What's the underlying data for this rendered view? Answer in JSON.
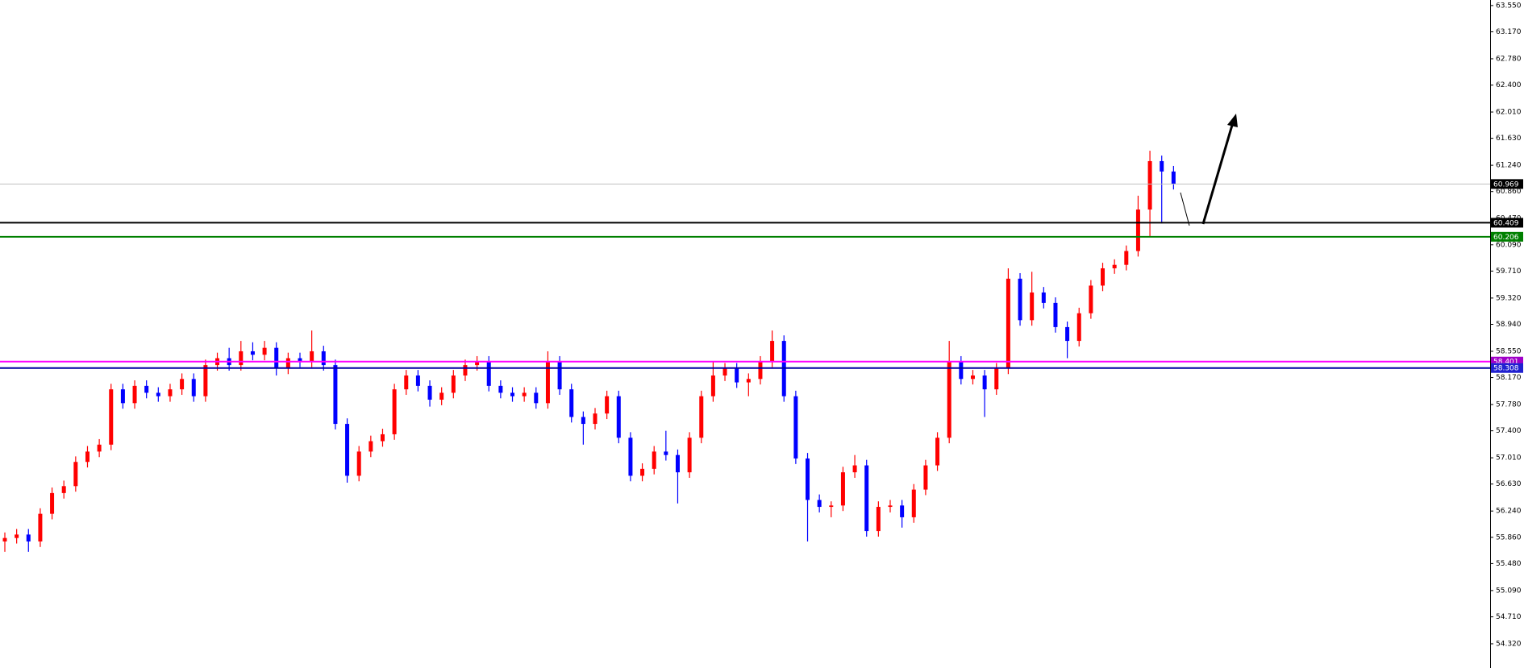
{
  "chart_data": {
    "type": "candlestick",
    "up_color": "#ff0000",
    "down_color": "#0000ff",
    "ylim": [
      53.97,
      63.63
    ],
    "yticks": [
      {
        "value": 63.55,
        "label": "63.550"
      },
      {
        "value": 63.17,
        "label": "63.170"
      },
      {
        "value": 62.78,
        "label": "62.780"
      },
      {
        "value": 62.4,
        "label": "62.400"
      },
      {
        "value": 62.01,
        "label": "62.010"
      },
      {
        "value": 61.63,
        "label": "61.630"
      },
      {
        "value": 61.24,
        "label": "61.240"
      },
      {
        "value": 60.86,
        "label": "60.860"
      },
      {
        "value": 60.47,
        "label": "60.470"
      },
      {
        "value": 60.09,
        "label": "60.090"
      },
      {
        "value": 59.71,
        "label": "59.710"
      },
      {
        "value": 59.32,
        "label": "59.320"
      },
      {
        "value": 58.94,
        "label": "58.940"
      },
      {
        "value": 58.55,
        "label": "58.550"
      },
      {
        "value": 58.17,
        "label": "58.170"
      },
      {
        "value": 57.78,
        "label": "57.780"
      },
      {
        "value": 57.4,
        "label": "57.400"
      },
      {
        "value": 57.01,
        "label": "57.010"
      },
      {
        "value": 56.63,
        "label": "56.630"
      },
      {
        "value": 56.24,
        "label": "56.240"
      },
      {
        "value": 55.86,
        "label": "55.860"
      },
      {
        "value": 55.48,
        "label": "55.480"
      },
      {
        "value": 55.09,
        "label": "55.090"
      },
      {
        "value": 54.71,
        "label": "54.710"
      },
      {
        "value": 54.32,
        "label": "54.320"
      }
    ],
    "levels": [
      {
        "value": 60.969,
        "color": "#c0c0c0",
        "label_color": "#000000"
      },
      {
        "value": 60.409,
        "color": "#000000",
        "label_color": "#000000"
      },
      {
        "value": 60.206,
        "color": "#008000",
        "label_color": "#008000"
      },
      {
        "value": 58.401,
        "color": "#ff00ff",
        "label_color": "#a000c8"
      },
      {
        "value": 58.308,
        "color": "#0000a0",
        "label_color": "#2020d0"
      }
    ],
    "open": [
      55.8,
      55.85,
      55.9,
      55.8,
      56.2,
      56.5,
      56.6,
      56.95,
      57.1,
      57.2,
      58.0,
      57.8,
      58.05,
      57.95,
      57.9,
      58.0,
      58.15,
      57.9,
      58.35,
      58.45,
      58.35,
      58.55,
      58.5,
      58.6,
      58.3,
      58.45,
      58.4,
      58.55,
      58.35,
      57.5,
      56.75,
      57.1,
      57.25,
      57.35,
      58.0,
      58.2,
      58.05,
      57.85,
      57.95,
      58.2,
      58.35,
      58.4,
      58.05,
      57.95,
      57.9,
      57.95,
      57.8,
      58.4,
      58.0,
      57.6,
      57.5,
      57.65,
      57.9,
      57.3,
      56.75,
      56.85,
      57.1,
      57.05,
      56.8,
      57.3,
      57.9,
      58.2,
      58.3,
      58.1,
      58.15,
      58.4,
      58.7,
      57.9,
      57.0,
      56.4,
      56.3,
      56.32,
      56.8,
      56.9,
      55.95,
      56.3,
      56.32,
      56.15,
      56.55,
      56.9,
      57.3,
      58.4,
      58.15,
      58.2,
      58.0,
      58.3,
      59.6,
      59.0,
      59.4,
      59.25,
      58.9,
      58.7,
      59.1,
      59.5,
      59.75,
      59.8,
      60.0,
      60.6,
      61.3,
      61.15
    ],
    "high": [
      55.93,
      55.98,
      55.98,
      56.28,
      56.58,
      56.68,
      57.03,
      57.18,
      57.28,
      58.08,
      58.08,
      58.13,
      58.13,
      58.03,
      58.08,
      58.23,
      58.23,
      58.43,
      58.53,
      58.6,
      58.7,
      58.68,
      58.7,
      58.68,
      58.53,
      58.53,
      58.85,
      58.63,
      58.43,
      57.58,
      57.18,
      57.33,
      57.43,
      58.08,
      58.28,
      58.28,
      58.13,
      58.03,
      58.28,
      58.43,
      58.48,
      58.48,
      58.13,
      58.03,
      58.03,
      58.03,
      58.55,
      58.48,
      58.08,
      57.68,
      57.73,
      57.98,
      57.98,
      57.38,
      56.93,
      57.18,
      57.4,
      57.13,
      57.38,
      57.98,
      58.4,
      58.38,
      58.38,
      58.23,
      58.48,
      58.85,
      58.78,
      57.98,
      57.08,
      56.48,
      56.38,
      56.88,
      57.05,
      56.98,
      56.38,
      56.4,
      56.4,
      56.63,
      56.98,
      57.38,
      58.7,
      58.48,
      58.28,
      58.28,
      58.38,
      59.75,
      59.68,
      59.7,
      59.48,
      59.33,
      58.98,
      59.18,
      59.58,
      59.83,
      59.88,
      60.08,
      60.8,
      61.45,
      61.38,
      61.23
    ],
    "low": [
      55.65,
      55.77,
      55.65,
      55.72,
      56.12,
      56.42,
      56.52,
      56.87,
      57.02,
      57.12,
      57.72,
      57.72,
      57.87,
      57.82,
      57.82,
      57.92,
      57.82,
      57.82,
      58.27,
      58.27,
      58.27,
      58.42,
      58.42,
      58.2,
      58.22,
      58.32,
      58.32,
      58.27,
      57.42,
      56.65,
      56.67,
      57.02,
      57.17,
      57.27,
      57.92,
      57.97,
      57.75,
      57.77,
      57.87,
      58.12,
      58.27,
      57.97,
      57.87,
      57.82,
      57.82,
      57.72,
      57.72,
      57.92,
      57.52,
      57.2,
      57.42,
      57.57,
      57.22,
      56.67,
      56.67,
      56.77,
      56.97,
      56.35,
      56.72,
      57.22,
      57.82,
      58.12,
      58.02,
      57.9,
      58.07,
      58.32,
      57.82,
      56.92,
      55.8,
      56.22,
      56.15,
      56.24,
      56.72,
      55.87,
      55.87,
      56.22,
      56.0,
      56.07,
      56.47,
      56.82,
      57.22,
      58.07,
      58.07,
      57.6,
      57.92,
      58.22,
      58.92,
      58.92,
      59.17,
      58.82,
      58.45,
      58.62,
      59.02,
      59.42,
      59.67,
      59.72,
      59.92,
      60.2,
      60.4,
      60.89
    ],
    "close": [
      55.85,
      55.9,
      55.8,
      56.2,
      56.5,
      56.6,
      56.95,
      57.1,
      57.2,
      58.0,
      57.8,
      58.05,
      57.95,
      57.9,
      58.0,
      58.15,
      57.9,
      58.35,
      58.45,
      58.35,
      58.55,
      58.5,
      58.6,
      58.3,
      58.45,
      58.4,
      58.55,
      58.35,
      57.5,
      56.75,
      57.1,
      57.25,
      57.35,
      58.0,
      58.2,
      58.05,
      57.85,
      57.95,
      58.2,
      58.35,
      58.4,
      58.05,
      57.95,
      57.9,
      57.95,
      57.8,
      58.4,
      58.0,
      57.6,
      57.5,
      57.65,
      57.9,
      57.3,
      56.75,
      56.85,
      57.1,
      57.05,
      56.8,
      57.3,
      57.9,
      58.2,
      58.3,
      58.1,
      58.15,
      58.4,
      58.7,
      57.9,
      57.0,
      56.4,
      56.3,
      56.32,
      56.8,
      56.9,
      55.95,
      56.3,
      56.32,
      56.15,
      56.55,
      56.9,
      57.3,
      58.4,
      58.15,
      58.2,
      58.0,
      58.3,
      59.6,
      59.0,
      59.4,
      59.25,
      58.9,
      58.7,
      59.1,
      59.5,
      59.75,
      59.8,
      60.0,
      60.6,
      61.3,
      61.15,
      60.97
    ]
  }
}
